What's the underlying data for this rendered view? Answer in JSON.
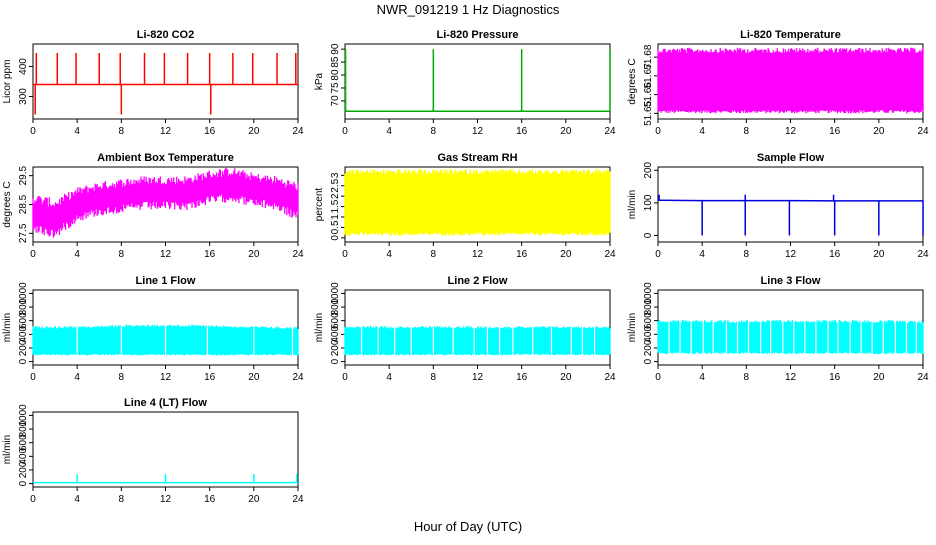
{
  "suptitle": "NWR_091219  1 Hz Diagnostics",
  "xlabel": "Hour of Day (UTC)",
  "chart_data": [
    {
      "type": "line",
      "title": "Li-820 CO2",
      "ylabel": "Licor ppm",
      "color": "#ff0000",
      "xlim": [
        0,
        24
      ],
      "xticks": [
        0,
        4,
        8,
        12,
        16,
        20,
        24
      ],
      "ylim": [
        225,
        475
      ],
      "yticks": [
        300,
        400
      ],
      "series": [
        {
          "x": [
            0,
            2,
            4,
            6,
            8,
            10,
            12,
            14,
            16,
            18,
            20,
            22,
            24
          ],
          "values": [
            340,
            340,
            340,
            340,
            340,
            340,
            340,
            340,
            340,
            340,
            340,
            340,
            340
          ]
        }
      ],
      "features": {
        "baseline": 340,
        "spikes_up_at": [
          0.3,
          2.2,
          3.9,
          6.0,
          7.9,
          10.1,
          11.9,
          14.0,
          16.0,
          18.1,
          19.9,
          22.1,
          23.8
        ],
        "spike_max": 445,
        "spikes_down_at": [
          0.2,
          8.0,
          16.1
        ],
        "spike_min": 240
      }
    },
    {
      "type": "line",
      "title": "Li-820 Pressure",
      "ylabel": "kPa",
      "color": "#00aa00",
      "xlim": [
        0,
        24
      ],
      "xticks": [
        0,
        4,
        8,
        12,
        16,
        20,
        24
      ],
      "ylim": [
        63,
        92
      ],
      "yticks": [
        70,
        75,
        80,
        85,
        90
      ],
      "series": [
        {
          "x": [
            0,
            4,
            8,
            12,
            16,
            20,
            24
          ],
          "values": [
            66,
            66,
            66,
            66,
            66,
            66,
            66
          ]
        }
      ],
      "features": {
        "baseline": 66,
        "spikes_up_at": [
          0.05,
          8.0,
          16.0,
          24.0
        ],
        "spike_max": 90
      }
    },
    {
      "type": "area",
      "title": "Li-820 Temperature",
      "ylabel": "degrees C",
      "color": "#ff00ff",
      "xlim": [
        0,
        24
      ],
      "xticks": [
        0,
        4,
        8,
        12,
        16,
        20,
        24
      ],
      "ylim": [
        51.647,
        51.687
      ],
      "yticks": [
        51.65,
        51.66,
        51.67,
        51.68
      ],
      "series": [
        {
          "x": [
            0,
            24
          ],
          "min": [
            51.65,
            51.65
          ],
          "max": [
            51.685,
            51.685
          ]
        }
      ]
    },
    {
      "type": "area",
      "title": "Ambient Box Temperature",
      "ylabel": "degrees C",
      "color": "#ff00ff",
      "xlim": [
        0,
        24
      ],
      "xticks": [
        0,
        4,
        8,
        12,
        16,
        20,
        24
      ],
      "ylim": [
        27.2,
        29.8
      ],
      "yticks": [
        27.5,
        28.5,
        29.5
      ],
      "series": [
        {
          "x": [
            0,
            2,
            4,
            6,
            8,
            10,
            12,
            14,
            16,
            18,
            20,
            22,
            24
          ],
          "center": [
            28.2,
            28.0,
            28.5,
            28.7,
            28.8,
            28.9,
            28.9,
            28.9,
            29.1,
            29.2,
            29.0,
            28.9,
            28.6
          ],
          "spread": [
            0.7,
            0.7,
            0.6,
            0.6,
            0.6,
            0.6,
            0.6,
            0.6,
            0.6,
            0.6,
            0.6,
            0.6,
            0.7
          ]
        }
      ]
    },
    {
      "type": "area",
      "title": "Gas Stream RH",
      "ylabel": "percent",
      "color": "#ffff00",
      "xlim": [
        0,
        24
      ],
      "xticks": [
        0,
        4,
        8,
        12,
        16,
        20,
        24
      ],
      "ylim": [
        -0.2,
        3.4
      ],
      "yticks": [
        0.0,
        0.5,
        1.0,
        1.5,
        2.0,
        2.5,
        3.0
      ],
      "series": [
        {
          "x": [
            0,
            24
          ],
          "min": [
            0.1,
            0.1
          ],
          "max": [
            3.3,
            3.3
          ]
        }
      ]
    },
    {
      "type": "line",
      "title": "Sample Flow",
      "ylabel": "ml/min",
      "color": "#0000dd",
      "xlim": [
        0,
        24
      ],
      "xticks": [
        0,
        4,
        8,
        12,
        16,
        20,
        24
      ],
      "ylim": [
        -20,
        210
      ],
      "yticks": [
        0,
        100,
        200
      ],
      "series": [
        {
          "x": [
            0,
            4,
            8,
            12,
            16,
            20,
            24
          ],
          "values": [
            108,
            107,
            107,
            107,
            106,
            106,
            106
          ]
        }
      ],
      "features": {
        "baseline": 107,
        "spikes_down_at": [
          4.0,
          7.9,
          11.9,
          16.0,
          20.0,
          24.0
        ],
        "spike_min": 0,
        "spikes_up_at": [
          0.1,
          7.9,
          15.9
        ],
        "spike_max": 125
      }
    },
    {
      "type": "area",
      "title": "Line 1 Flow",
      "ylabel": "ml/min",
      "color": "#00ffff",
      "xlim": [
        0,
        24
      ],
      "xticks": [
        0,
        4,
        8,
        12,
        16,
        20,
        24
      ],
      "ylim": [
        -50,
        1050
      ],
      "yticks": [
        0,
        200,
        400,
        600,
        800,
        1000
      ],
      "series": [
        {
          "x": [
            0,
            4,
            8,
            12,
            16,
            20,
            24
          ],
          "min": [
            90,
            90,
            90,
            90,
            90,
            90,
            90
          ],
          "max": [
            520,
            520,
            540,
            550,
            540,
            520,
            510
          ]
        }
      ],
      "features": {
        "gaps_at": [
          4.0,
          8.0,
          12.0,
          15.8,
          20.0,
          23.5
        ]
      }
    },
    {
      "type": "area",
      "title": "Line 2 Flow",
      "ylabel": "ml/min",
      "color": "#00ffff",
      "xlim": [
        0,
        24
      ],
      "xticks": [
        0,
        4,
        8,
        12,
        16,
        20,
        24
      ],
      "ylim": [
        -50,
        1050
      ],
      "yticks": [
        0,
        200,
        400,
        600,
        800,
        1000
      ],
      "series": [
        {
          "x": [
            0,
            4,
            8,
            12,
            16,
            20,
            24
          ],
          "min": [
            90,
            90,
            90,
            90,
            90,
            90,
            90
          ],
          "max": [
            530,
            520,
            520,
            520,
            520,
            520,
            520
          ]
        }
      ],
      "features": {
        "gaps_at": [
          1.5,
          3.0,
          4.5,
          6.0,
          8.0,
          9.8,
          11.7,
          12.9,
          14.0,
          15.2,
          17.0,
          18.7,
          20.5,
          21.5,
          22.6
        ]
      }
    },
    {
      "type": "area",
      "title": "Line 3 Flow",
      "ylabel": "ml/min",
      "color": "#00ffff",
      "xlim": [
        0,
        24
      ],
      "xticks": [
        0,
        4,
        8,
        12,
        16,
        20,
        24
      ],
      "ylim": [
        -50,
        1050
      ],
      "yticks": [
        0,
        200,
        400,
        600,
        800,
        1000
      ],
      "series": [
        {
          "x": [
            0,
            4,
            8,
            12,
            16,
            20,
            24
          ],
          "min": [
            110,
            110,
            110,
            110,
            110,
            110,
            110
          ],
          "max": [
            610,
            610,
            610,
            610,
            610,
            610,
            600
          ]
        }
      ],
      "features": {
        "gaps_at": [
          1.0,
          2.0,
          3.0,
          4.1,
          5.0,
          6.2,
          7.2,
          8.2,
          9.3,
          10.2,
          11.3,
          12.3,
          13.3,
          14.3,
          15.4,
          16.3,
          17.4,
          18.4,
          19.4,
          20.4,
          21.5,
          22.5,
          23.4
        ]
      }
    },
    {
      "type": "line",
      "title": "Line 4 (LT) Flow",
      "ylabel": "ml/min",
      "color": "#00ffff",
      "xlim": [
        0,
        24
      ],
      "xticks": [
        0,
        4,
        8,
        12,
        16,
        20,
        24
      ],
      "ylim": [
        -50,
        1050
      ],
      "yticks": [
        0,
        200,
        400,
        600,
        800,
        1000
      ],
      "series": [
        {
          "x": [
            0,
            4,
            8,
            12,
            16,
            20,
            24
          ],
          "values": [
            15,
            15,
            15,
            15,
            15,
            15,
            15
          ]
        }
      ],
      "features": {
        "baseline": 15,
        "spikes_up_at": [
          4.0,
          12.0,
          20.0,
          23.9
        ],
        "spike_max": 140
      }
    }
  ]
}
